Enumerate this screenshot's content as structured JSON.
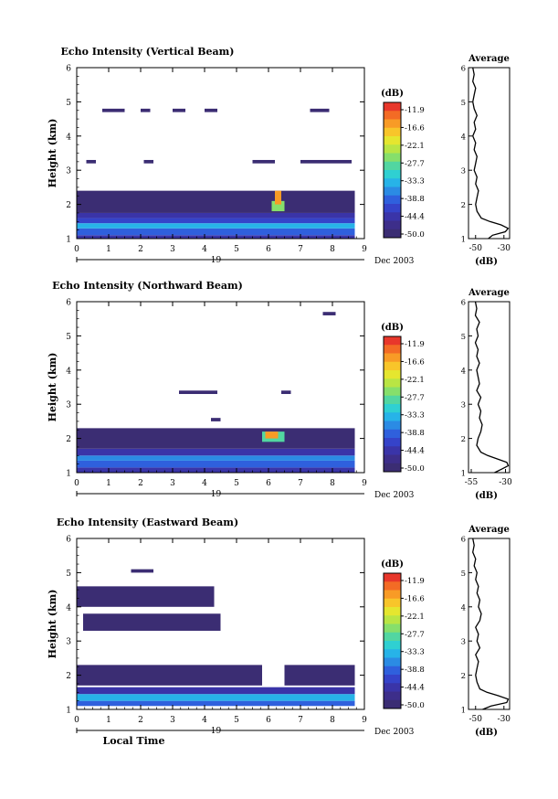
{
  "figure": {
    "colorbar_unit": "(dB)",
    "colorbar_ticks": [
      "-11.9",
      "-16.6",
      "-22.1",
      "-27.7",
      "-33.3",
      "-38.8",
      "-44.4",
      "-50.0"
    ],
    "colorbar_colors": [
      "#e8372b",
      "#f36b25",
      "#f89b26",
      "#f8c52a",
      "#e5e62f",
      "#b9e544",
      "#86df6b",
      "#52d6a1",
      "#2fd0d2",
      "#27b3e8",
      "#2b8be4",
      "#2f60dd",
      "#3543c9",
      "#3a34a8",
      "#3d2e8a",
      "#3b2d73"
    ],
    "x_ticks": [
      "0",
      "1",
      "2",
      "3",
      "4",
      "5",
      "6",
      "7",
      "8",
      "9"
    ],
    "day_label": "19",
    "month_label": "Dec 2003",
    "x_axis_title": "Local Time",
    "y_ticks": [
      "1",
      "2",
      "3",
      "4",
      "5",
      "6"
    ],
    "y_axis_title": "Height (km)",
    "avg_title": "Average",
    "avg_xlabel": "(dB)"
  },
  "chart_data": [
    {
      "type": "heatmap",
      "title": "Echo Intensity (Vertical Beam)",
      "xlabel": "",
      "ylabel": "Height (km)",
      "xlim": [
        0,
        9
      ],
      "ylim": [
        1,
        6
      ],
      "zunit": "dB",
      "zlim": [
        -50.0,
        -11.9
      ],
      "regions": [
        {
          "x0": 0,
          "x1": 8.7,
          "y0": 1.0,
          "y1": 1.1,
          "z": -44
        },
        {
          "x0": 0,
          "x1": 8.7,
          "y0": 1.1,
          "y1": 1.3,
          "z": -40
        },
        {
          "x0": 0,
          "x1": 8.7,
          "y0": 1.3,
          "y1": 1.45,
          "z": -36
        },
        {
          "x0": 0,
          "x1": 8.7,
          "y0": 1.45,
          "y1": 1.6,
          "z": -42
        },
        {
          "x0": 0,
          "x1": 8.7,
          "y0": 1.6,
          "y1": 1.75,
          "z": -46
        },
        {
          "x0": 0,
          "x1": 8.7,
          "y0": 1.75,
          "y1": 2.4,
          "z": -49
        },
        {
          "x0": 6.1,
          "x1": 6.5,
          "y0": 1.8,
          "y1": 2.1,
          "z": -28
        },
        {
          "x0": 6.2,
          "x1": 6.4,
          "y0": 2.0,
          "y1": 2.4,
          "z": -17
        },
        {
          "x0": 0.3,
          "x1": 0.6,
          "y0": 3.2,
          "y1": 3.3,
          "z": -49
        },
        {
          "x0": 2.1,
          "x1": 2.4,
          "y0": 3.2,
          "y1": 3.3,
          "z": -49
        },
        {
          "x0": 5.5,
          "x1": 6.2,
          "y0": 3.2,
          "y1": 3.3,
          "z": -49
        },
        {
          "x0": 7.0,
          "x1": 8.6,
          "y0": 3.2,
          "y1": 3.3,
          "z": -49
        },
        {
          "x0": 0.8,
          "x1": 1.5,
          "y0": 4.7,
          "y1": 4.8,
          "z": -49
        },
        {
          "x0": 2.0,
          "x1": 2.3,
          "y0": 4.7,
          "y1": 4.8,
          "z": -49
        },
        {
          "x0": 3.0,
          "x1": 3.4,
          "y0": 4.7,
          "y1": 4.8,
          "z": -49
        },
        {
          "x0": 4.0,
          "x1": 4.4,
          "y0": 4.7,
          "y1": 4.8,
          "z": -49
        },
        {
          "x0": 7.3,
          "x1": 7.9,
          "y0": 4.7,
          "y1": 4.8,
          "z": -49
        }
      ],
      "average_profile": {
        "xlim": [
          -55,
          -26
        ],
        "x_ticks": [
          "-50",
          "-30"
        ],
        "height": [
          1.0,
          1.1,
          1.2,
          1.3,
          1.4,
          1.5,
          1.6,
          1.8,
          2.0,
          2.2,
          2.4,
          2.6,
          2.8,
          3.0,
          3.2,
          3.4,
          3.6,
          3.8,
          4.0,
          4.2,
          4.4,
          4.6,
          4.8,
          5.0,
          5.2,
          5.4,
          5.6,
          5.8,
          6.0
        ],
        "value": [
          -41,
          -38,
          -29,
          -27,
          -32,
          -40,
          -46,
          -49,
          -50,
          -49,
          -48,
          -50,
          -49,
          -51,
          -50,
          -49,
          -51,
          -50,
          -52,
          -50,
          -51,
          -49,
          -51,
          -52,
          -51,
          -50,
          -52,
          -51,
          -52
        ]
      }
    },
    {
      "type": "heatmap",
      "title": "Echo Intensity (Northward Beam)",
      "xlabel": "",
      "ylabel": "Height (km)",
      "xlim": [
        0,
        9
      ],
      "ylim": [
        1,
        6
      ],
      "zunit": "dB",
      "zlim": [
        -50.0,
        -11.9
      ],
      "regions": [
        {
          "x0": 0,
          "x1": 8.7,
          "y0": 1.0,
          "y1": 1.15,
          "z": -46
        },
        {
          "x0": 0,
          "x1": 8.7,
          "y0": 1.15,
          "y1": 1.35,
          "z": -40
        },
        {
          "x0": 0,
          "x1": 8.7,
          "y0": 1.35,
          "y1": 1.5,
          "z": -38
        },
        {
          "x0": 0,
          "x1": 8.7,
          "y0": 1.5,
          "y1": 1.7,
          "z": -44
        },
        {
          "x0": 0,
          "x1": 8.7,
          "y0": 1.7,
          "y1": 2.3,
          "z": -49
        },
        {
          "x0": 5.8,
          "x1": 6.5,
          "y0": 1.9,
          "y1": 2.2,
          "z": -30
        },
        {
          "x0": 5.9,
          "x1": 6.3,
          "y0": 2.0,
          "y1": 2.2,
          "z": -18
        },
        {
          "x0": 3.2,
          "x1": 4.4,
          "y0": 3.3,
          "y1": 3.4,
          "z": -49
        },
        {
          "x0": 6.4,
          "x1": 6.7,
          "y0": 3.3,
          "y1": 3.4,
          "z": -49
        },
        {
          "x0": 4.2,
          "x1": 4.5,
          "y0": 2.5,
          "y1": 2.6,
          "z": -49
        },
        {
          "x0": 7.7,
          "x1": 8.1,
          "y0": 5.6,
          "y1": 5.7,
          "z": -49
        }
      ],
      "average_profile": {
        "xlim": [
          -57,
          -27
        ],
        "x_ticks": [
          "-55",
          "-30"
        ],
        "height": [
          1.0,
          1.1,
          1.2,
          1.3,
          1.4,
          1.5,
          1.6,
          1.8,
          2.0,
          2.2,
          2.4,
          2.6,
          2.8,
          3.0,
          3.2,
          3.4,
          3.6,
          3.8,
          4.0,
          4.2,
          4.4,
          4.6,
          4.8,
          5.0,
          5.2,
          5.4,
          5.6,
          5.8,
          6.0
        ],
        "value": [
          -38,
          -33,
          -28,
          -29,
          -36,
          -43,
          -48,
          -51,
          -50,
          -48,
          -47,
          -49,
          -48,
          -50,
          -48,
          -51,
          -49,
          -50,
          -51,
          -49,
          -51,
          -50,
          -52,
          -50,
          -51,
          -49,
          -52,
          -51,
          -52
        ]
      }
    },
    {
      "type": "heatmap",
      "title": "Echo Intensity (Eastward Beam)",
      "xlabel": "Local Time",
      "ylabel": "Height (km)",
      "xlim": [
        0,
        9
      ],
      "ylim": [
        1,
        6
      ],
      "zunit": "dB",
      "zlim": [
        -50.0,
        -11.9
      ],
      "regions": [
        {
          "x0": 0,
          "x1": 8.7,
          "y0": 1.1,
          "y1": 1.25,
          "z": -40
        },
        {
          "x0": 0,
          "x1": 8.7,
          "y0": 1.25,
          "y1": 1.45,
          "z": -36
        },
        {
          "x0": 0,
          "x1": 8.7,
          "y0": 1.45,
          "y1": 1.65,
          "z": -44
        },
        {
          "x0": 0,
          "x1": 5.8,
          "y0": 1.7,
          "y1": 2.3,
          "z": -49
        },
        {
          "x0": 6.5,
          "x1": 8.7,
          "y0": 1.7,
          "y1": 2.3,
          "z": -49
        },
        {
          "x0": 0.2,
          "x1": 4.5,
          "y0": 3.3,
          "y1": 3.8,
          "z": -49
        },
        {
          "x0": 0,
          "x1": 4.3,
          "y0": 4.0,
          "y1": 4.6,
          "z": -49
        },
        {
          "x0": 1.7,
          "x1": 2.4,
          "y0": 5.0,
          "y1": 5.1,
          "z": -49
        }
      ],
      "average_profile": {
        "xlim": [
          -55,
          -26
        ],
        "x_ticks": [
          "-50",
          "-30"
        ],
        "height": [
          1.0,
          1.1,
          1.2,
          1.3,
          1.4,
          1.5,
          1.6,
          1.8,
          2.0,
          2.2,
          2.4,
          2.6,
          2.8,
          3.0,
          3.2,
          3.4,
          3.6,
          3.8,
          4.0,
          4.2,
          4.4,
          4.6,
          4.8,
          5.0,
          5.2,
          5.4,
          5.6,
          5.8,
          6.0
        ],
        "value": [
          -45,
          -39,
          -28,
          -27,
          -34,
          -42,
          -47,
          -49,
          -50,
          -49,
          -48,
          -50,
          -47,
          -49,
          -48,
          -50,
          -47,
          -46,
          -48,
          -47,
          -49,
          -48,
          -50,
          -49,
          -51,
          -50,
          -52,
          -51,
          -52
        ]
      }
    }
  ]
}
